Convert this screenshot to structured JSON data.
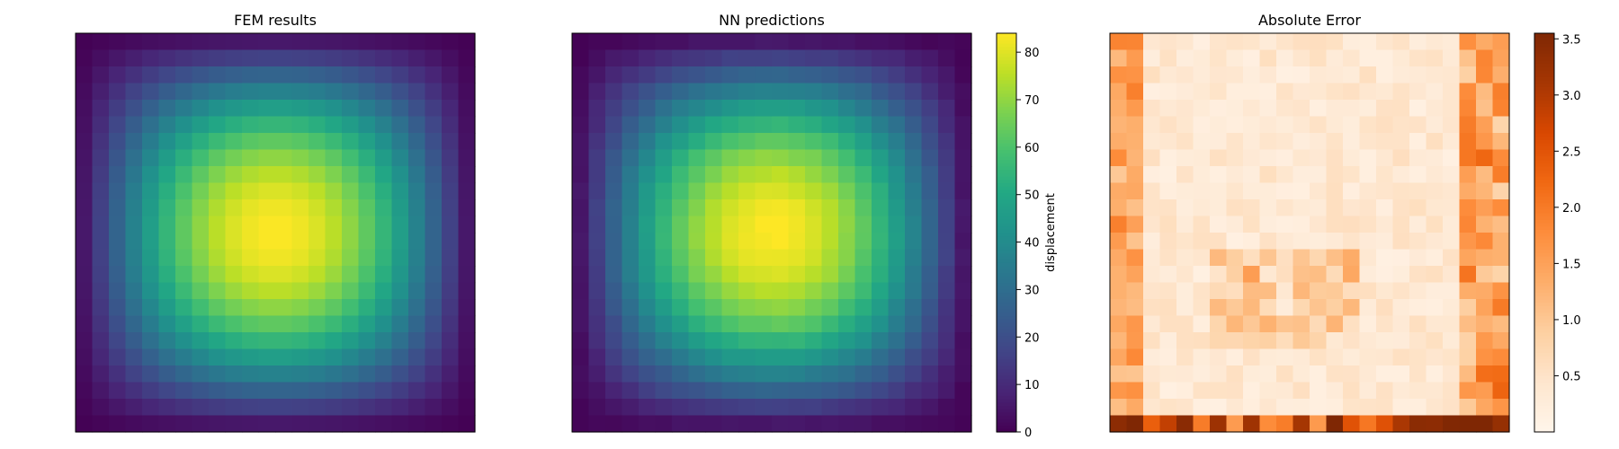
{
  "chart_data": [
    {
      "type": "heatmap",
      "title": "FEM results",
      "grid": [
        24,
        24
      ],
      "colormap": "viridis",
      "vmin": 0,
      "vmax": 84,
      "field": "sin(pi*x)*sin(pi*y)*84 on a 24x24 cell grid, peak at center",
      "peak_value": 84,
      "colorbar": null
    },
    {
      "type": "heatmap",
      "title": "NN predictions",
      "grid": [
        24,
        24
      ],
      "colormap": "viridis",
      "vmin": 0,
      "vmax": 84,
      "field": "nearly identical to FEM results, peak at center",
      "peak_value": 84,
      "colorbar": {
        "label": "displacement",
        "ticks": [
          0,
          10,
          20,
          30,
          40,
          50,
          60,
          70,
          80
        ],
        "ylim": [
          0,
          84
        ]
      }
    },
    {
      "type": "heatmap",
      "title": "Absolute Error",
      "grid": [
        24,
        24
      ],
      "colormap": "oranges",
      "vmin": 0,
      "vmax": 3.55,
      "field": "low error in interior, higher along left, right and bottom edges",
      "max_value": 3.55,
      "colorbar": {
        "label": "",
        "ticks": [
          0.5,
          1.0,
          1.5,
          2.0,
          2.5,
          3.0,
          3.5
        ],
        "ylim": [
          0,
          3.55
        ]
      }
    }
  ]
}
